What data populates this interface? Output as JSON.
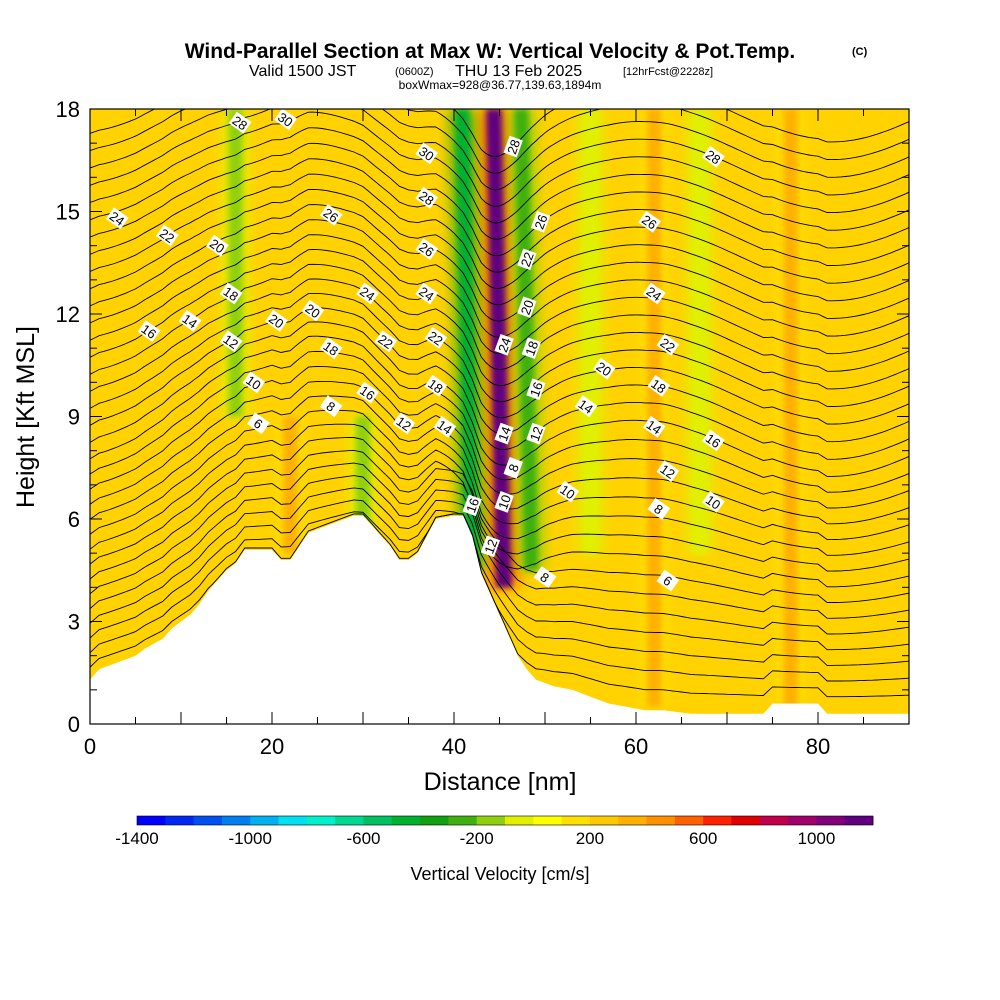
{
  "header": {
    "title": "Wind-Parallel Section at Max W: Vertical Velocity & Pot.Temp.",
    "copyright": "(C)",
    "valid_prefix": "Valid 1500 JST",
    "valid_zulu": "(0600Z)",
    "valid_date": "THU 13 Feb 2025",
    "forecast_info": "[12hrFcst@2228z]",
    "box_info": "boxWmax=928@36.77,139.63,1894m"
  },
  "colors": {
    "background_field": "#ffd200",
    "terrain": "#ffffff",
    "contour": "#000000"
  },
  "chart_data": {
    "type": "heatmap",
    "title": "Wind-Parallel Section at Max W: Vertical Velocity & Pot.Temp.",
    "xlabel": "Distance [nm]",
    "ylabel": "Height [Kft MSL]",
    "xlim": [
      0,
      90
    ],
    "ylim": [
      0,
      18
    ],
    "x_ticks": [
      0,
      20,
      40,
      60,
      80
    ],
    "y_ticks": [
      0,
      3,
      6,
      9,
      12,
      15,
      18
    ],
    "x_tick_labels": [
      "0",
      "20",
      "40",
      "60",
      "80"
    ],
    "y_tick_labels": [
      "0",
      "3",
      "6",
      "9",
      "12",
      "15",
      "18"
    ],
    "colorbar": {
      "label": "Vertical Velocity [cm/s]",
      "levels": [
        -1400,
        -1300,
        -1200,
        -1100,
        -1000,
        -900,
        -800,
        -700,
        -600,
        -500,
        -400,
        -300,
        -200,
        -100,
        0,
        100,
        200,
        300,
        400,
        500,
        600,
        700,
        800,
        900,
        1000,
        1100
      ],
      "colors": [
        "#0000ff",
        "#0028f0",
        "#0050f0",
        "#0080f0",
        "#00b0f0",
        "#00e0f0",
        "#00f0c8",
        "#00d890",
        "#00c060",
        "#00b030",
        "#10a010",
        "#40b010",
        "#90d010",
        "#e0f000",
        "#ffff00",
        "#ffe000",
        "#ffc800",
        "#ffb000",
        "#ff9000",
        "#ff6000",
        "#ff2000",
        "#e00000",
        "#c0004a",
        "#a0006a",
        "#80007a",
        "#600080"
      ],
      "tick_values": [
        -1400,
        -1000,
        -600,
        -200,
        200,
        600,
        1000
      ],
      "tick_labels": [
        "-1400",
        "-1000",
        "-600",
        "-200",
        "200",
        "600",
        "1000"
      ]
    },
    "terrain_profile": [
      [
        0,
        1.3
      ],
      [
        1,
        1.6
      ],
      [
        3,
        1.8
      ],
      [
        5,
        2.0
      ],
      [
        6,
        2.2
      ],
      [
        8,
        2.5
      ],
      [
        9,
        2.8
      ],
      [
        11,
        3.2
      ],
      [
        12,
        3.5
      ],
      [
        13,
        3.9
      ],
      [
        14,
        4.2
      ],
      [
        15,
        4.5
      ],
      [
        16,
        4.7
      ],
      [
        17,
        5.1
      ],
      [
        18,
        5.1
      ],
      [
        20,
        5.1
      ],
      [
        21,
        4.8
      ],
      [
        22,
        4.8
      ],
      [
        23,
        5.2
      ],
      [
        24,
        5.6
      ],
      [
        26,
        5.8
      ],
      [
        28,
        6.0
      ],
      [
        29,
        6.1
      ],
      [
        30,
        6.1
      ],
      [
        31,
        5.8
      ],
      [
        33,
        5.2
      ],
      [
        34,
        4.8
      ],
      [
        35,
        4.8
      ],
      [
        36,
        5.0
      ],
      [
        37,
        5.5
      ],
      [
        38,
        6.0
      ],
      [
        40,
        6.1
      ],
      [
        41,
        6.1
      ],
      [
        42,
        5.5
      ],
      [
        43,
        4.4
      ],
      [
        44,
        3.8
      ],
      [
        45,
        3.2
      ],
      [
        46,
        2.6
      ],
      [
        47,
        2.0
      ],
      [
        48,
        1.6
      ],
      [
        49,
        1.3
      ],
      [
        51,
        1.1
      ],
      [
        53,
        1.0
      ],
      [
        55,
        0.8
      ],
      [
        57,
        0.6
      ],
      [
        59,
        0.5
      ],
      [
        61,
        0.4
      ],
      [
        63,
        0.4
      ],
      [
        66,
        0.3
      ],
      [
        70,
        0.3
      ],
      [
        74,
        0.3
      ],
      [
        75,
        0.6
      ],
      [
        80,
        0.6
      ],
      [
        81,
        0.3
      ],
      [
        85,
        0.3
      ],
      [
        90,
        0.3
      ]
    ],
    "velocity_features": [
      {
        "x": 45.5,
        "y_bottom": 4.0,
        "y_top": 18.0,
        "w": 1100
      },
      {
        "x": 42.0,
        "y_bottom": 4.5,
        "y_top": 18.0,
        "w": -450
      },
      {
        "x": 48.5,
        "y_bottom": 4.5,
        "y_top": 18.0,
        "w": -300
      },
      {
        "x": 16.0,
        "y_bottom": 9.0,
        "y_top": 18.0,
        "w": -200
      },
      {
        "x": 30.0,
        "y_bottom": 5.0,
        "y_top": 9.0,
        "w": -200
      },
      {
        "x": 55.0,
        "y_bottom": 5.0,
        "y_top": 18.0,
        "w": -100
      },
      {
        "x": 62.0,
        "y_bottom": 0.5,
        "y_top": 18.0,
        "w": 300
      },
      {
        "x": 67.0,
        "y_bottom": 5.0,
        "y_top": 18.0,
        "w": -100
      },
      {
        "x": 77.0,
        "y_bottom": 0.5,
        "y_top": 18.0,
        "w": 300
      },
      {
        "x": 22.0,
        "y_bottom": 5.0,
        "y_top": 9.0,
        "w": 300
      }
    ],
    "theta_contour_labels": [
      {
        "text": "28",
        "x": 16.5,
        "y": 17.6
      },
      {
        "text": "30",
        "x": 21.5,
        "y": 17.7
      },
      {
        "text": "24",
        "x": 3.0,
        "y": 14.8
      },
      {
        "text": "22",
        "x": 8.5,
        "y": 14.3
      },
      {
        "text": "20",
        "x": 14.0,
        "y": 14.0
      },
      {
        "text": "26",
        "x": 26.5,
        "y": 14.9
      },
      {
        "text": "18",
        "x": 15.5,
        "y": 12.6
      },
      {
        "text": "20",
        "x": 20.5,
        "y": 11.8
      },
      {
        "text": "20",
        "x": 24.5,
        "y": 12.1
      },
      {
        "text": "24",
        "x": 30.5,
        "y": 12.6
      },
      {
        "text": "16",
        "x": 6.5,
        "y": 11.5
      },
      {
        "text": "14",
        "x": 11.0,
        "y": 11.8
      },
      {
        "text": "12",
        "x": 15.5,
        "y": 11.2
      },
      {
        "text": "18",
        "x": 26.5,
        "y": 11.0
      },
      {
        "text": "22",
        "x": 32.5,
        "y": 11.2
      },
      {
        "text": "10",
        "x": 18.0,
        "y": 10.0
      },
      {
        "text": "6",
        "x": 18.5,
        "y": 8.8
      },
      {
        "text": "8",
        "x": 26.5,
        "y": 9.3
      },
      {
        "text": "16",
        "x": 30.5,
        "y": 9.7
      },
      {
        "text": "12",
        "x": 34.5,
        "y": 8.8
      },
      {
        "text": "30",
        "x": 37.0,
        "y": 16.7
      },
      {
        "text": "28",
        "x": 37.0,
        "y": 15.4
      },
      {
        "text": "26",
        "x": 37.0,
        "y": 13.9
      },
      {
        "text": "24",
        "x": 37.0,
        "y": 12.6
      },
      {
        "text": "22",
        "x": 38.0,
        "y": 11.3
      },
      {
        "text": "18",
        "x": 38.0,
        "y": 9.9
      },
      {
        "text": "14",
        "x": 39.0,
        "y": 8.7
      },
      {
        "text": "16",
        "x": 42.0,
        "y": 6.4
      },
      {
        "text": "12",
        "x": 44.0,
        "y": 5.2
      },
      {
        "text": "28",
        "x": 46.5,
        "y": 16.9
      },
      {
        "text": "26",
        "x": 49.5,
        "y": 14.7
      },
      {
        "text": "22",
        "x": 48.0,
        "y": 13.6
      },
      {
        "text": "20",
        "x": 48.0,
        "y": 12.2
      },
      {
        "text": "24",
        "x": 45.5,
        "y": 11.1
      },
      {
        "text": "18",
        "x": 48.5,
        "y": 11.0
      },
      {
        "text": "16",
        "x": 49.0,
        "y": 9.8
      },
      {
        "text": "14",
        "x": 45.5,
        "y": 8.5
      },
      {
        "text": "12",
        "x": 49.0,
        "y": 8.5
      },
      {
        "text": "8",
        "x": 46.5,
        "y": 7.5
      },
      {
        "text": "10",
        "x": 45.5,
        "y": 6.5
      },
      {
        "text": "10",
        "x": 52.5,
        "y": 6.8
      },
      {
        "text": "8",
        "x": 50.0,
        "y": 4.3
      },
      {
        "text": "14",
        "x": 54.5,
        "y": 9.3
      },
      {
        "text": "20",
        "x": 56.5,
        "y": 10.4
      },
      {
        "text": "26",
        "x": 61.5,
        "y": 14.7
      },
      {
        "text": "24",
        "x": 62.0,
        "y": 12.6
      },
      {
        "text": "22",
        "x": 63.5,
        "y": 11.1
      },
      {
        "text": "18",
        "x": 62.5,
        "y": 9.9
      },
      {
        "text": "14",
        "x": 62.0,
        "y": 8.7
      },
      {
        "text": "12",
        "x": 63.5,
        "y": 7.4
      },
      {
        "text": "8",
        "x": 62.5,
        "y": 6.3
      },
      {
        "text": "6",
        "x": 63.5,
        "y": 4.2
      },
      {
        "text": "28",
        "x": 68.5,
        "y": 16.6
      },
      {
        "text": "16",
        "x": 68.5,
        "y": 8.3
      },
      {
        "text": "10",
        "x": 68.5,
        "y": 6.5
      }
    ]
  }
}
